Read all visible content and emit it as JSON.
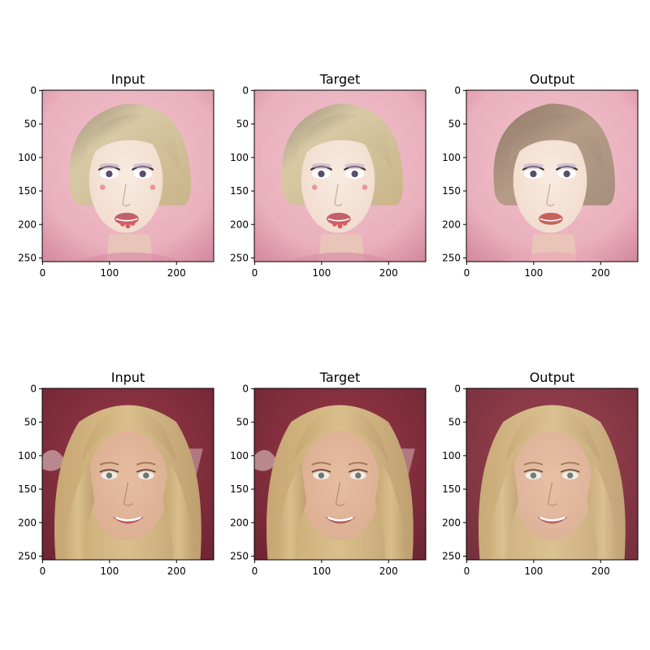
{
  "figure": {
    "rows": [
      {
        "panels": [
          {
            "title": "Input",
            "scene": "pink-bob"
          },
          {
            "title": "Target",
            "scene": "pink-bob"
          },
          {
            "title": "Output",
            "scene": "pink-bob-output"
          }
        ]
      },
      {
        "panels": [
          {
            "title": "Input",
            "scene": "blonde-red"
          },
          {
            "title": "Target",
            "scene": "blonde-red"
          },
          {
            "title": "Output",
            "scene": "blonde-red-output"
          }
        ]
      }
    ],
    "axes": {
      "x_ticks": [
        "0",
        "100",
        "200"
      ],
      "x_tick_values": [
        0,
        100,
        200
      ],
      "y_ticks": [
        "0",
        "50",
        "100",
        "150",
        "200",
        "250"
      ],
      "y_tick_values": [
        0,
        50,
        100,
        150,
        200,
        250
      ],
      "range": [
        0,
        256
      ]
    }
  },
  "colors": {
    "pink_bg": "#eab0bd",
    "pink_bg_dark": "#d58ba0",
    "bob_hair": "#d8c9a5",
    "bob_hair_output": "#b59c86",
    "skin_light": "#f1dccd",
    "red_bg": "#8e3240",
    "red_bg_dark": "#6f2533",
    "blonde_hair": "#d9bf8c",
    "skin_warm": "#dcae92",
    "lips": "#c4606a"
  }
}
